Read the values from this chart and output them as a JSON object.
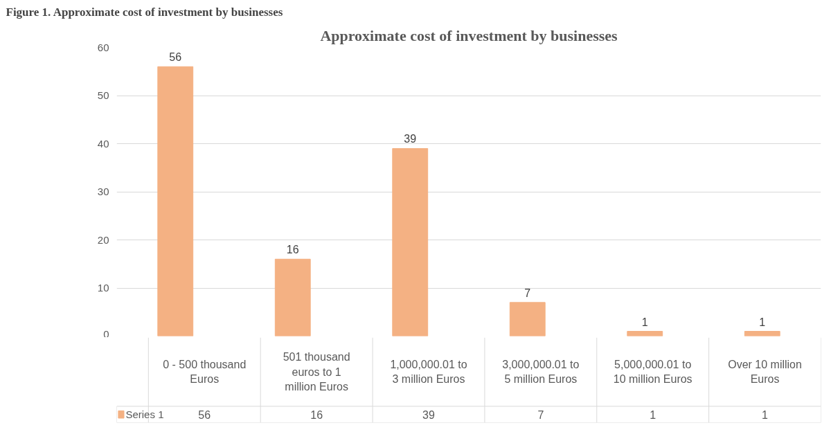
{
  "chart_data": {
    "type": "bar",
    "title": "Approximate cost of investment by businesses",
    "annotations": [
      "Figure 1. Approximate cost of investment by businesses"
    ],
    "categories": [
      "0 - 500 thousand Euros",
      "501 thousand euros to 1 million Euros",
      "1,000,000.01 to 3 million Euros",
      "3,000,000.01 to 5 million Euros",
      "5,000,000.01 to 10 million Euros",
      "Over 10 million Euros"
    ],
    "series": [
      {
        "name": "Series 1",
        "color": "#f4b183",
        "values": [
          56,
          16,
          39,
          7,
          1,
          1
        ],
        "value_labels": [
          "56",
          "16",
          "39",
          "7",
          "1",
          "1"
        ]
      }
    ],
    "data_labels": true,
    "ylim": [
      0,
      60
    ],
    "yticks": [
      0,
      10,
      20,
      30,
      40,
      50,
      60
    ],
    "grid": "y"
  }
}
